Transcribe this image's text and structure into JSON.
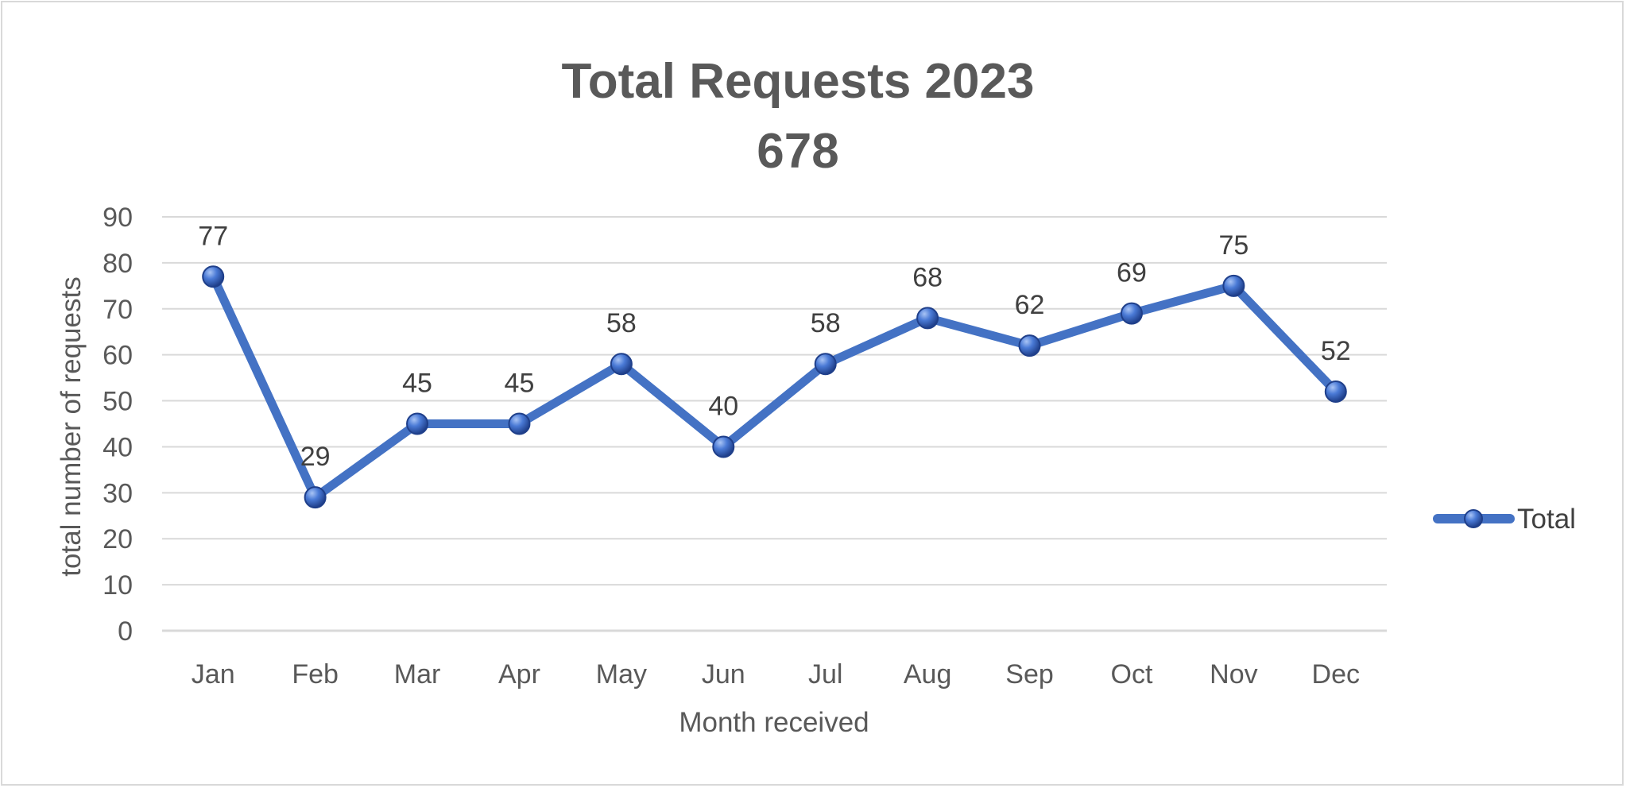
{
  "chart_data": {
    "type": "line",
    "title": "Total Requests 2023",
    "subtitle": "678",
    "xlabel": "Month received",
    "ylabel": "total number of requests",
    "ylim": [
      0,
      90
    ],
    "yticks": [
      0,
      10,
      20,
      30,
      40,
      50,
      60,
      70,
      80,
      90
    ],
    "grid": true,
    "legend_position": "right",
    "categories": [
      "Jan",
      "Feb",
      "Mar",
      "Apr",
      "May",
      "Jun",
      "Jul",
      "Aug",
      "Sep",
      "Oct",
      "Nov",
      "Dec"
    ],
    "series": [
      {
        "name": "Total",
        "color": "#4472c4",
        "values": [
          77,
          29,
          45,
          45,
          58,
          40,
          58,
          68,
          62,
          69,
          75,
          52
        ]
      }
    ]
  }
}
